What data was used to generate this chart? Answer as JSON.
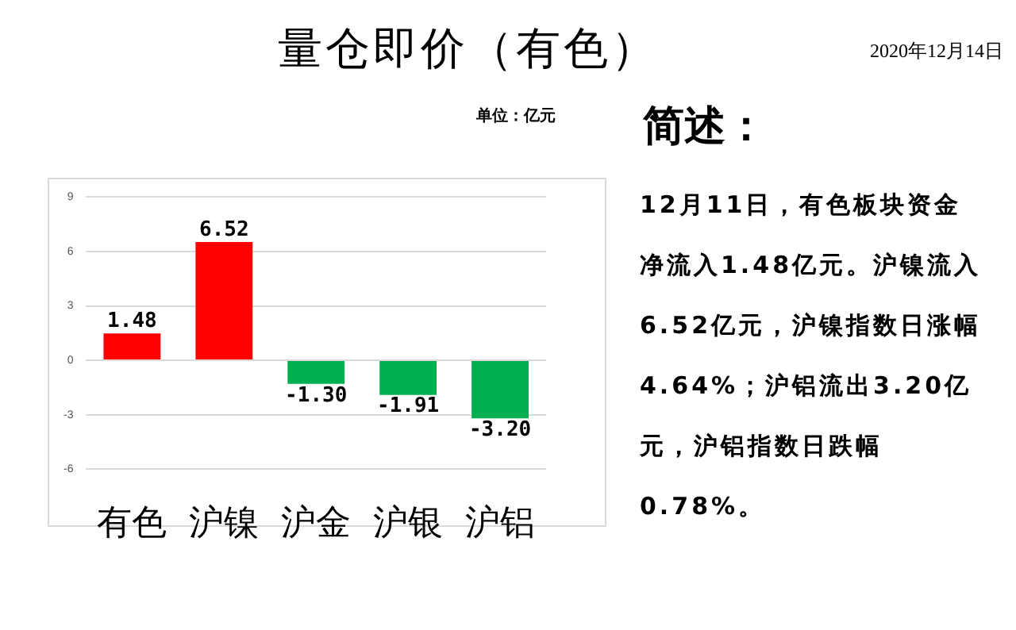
{
  "chart_data": {
    "type": "bar",
    "title": "量仓即价（有色）",
    "subtitle": "2020年12月14日",
    "categories": [
      "有色",
      "沪镍",
      "沪金",
      "沪银",
      "沪铝"
    ],
    "values": [
      1.48,
      6.52,
      -1.3,
      -1.91,
      -3.2
    ],
    "colors": [
      "#ff0000",
      "#ff0000",
      "#00b050",
      "#00b050",
      "#00b050"
    ],
    "value_labels": [
      "1.48",
      "6.52",
      "-1.30",
      "-1.91",
      "-3.20"
    ],
    "ylim": [
      -6,
      9
    ],
    "yticks": [
      -6,
      -3,
      0,
      3,
      6,
      9
    ],
    "grid": "y",
    "legend": false,
    "annotations": [
      "单位：亿元",
      "简述：",
      "12月11日，有色板块资金净流入1.48亿元。沪镍流入6.52亿元，沪镍指数日涨幅4.64%；沪铝流出3.20亿元，沪铝指数日跌幅0.78%。"
    ]
  }
}
